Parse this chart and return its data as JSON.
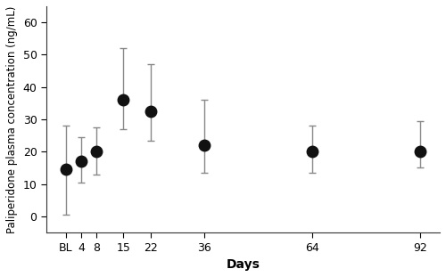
{
  "x_labels": [
    "BL",
    "4",
    "8",
    "15",
    "22",
    "36",
    "64",
    "92"
  ],
  "x_positions": [
    0,
    4,
    8,
    15,
    22,
    36,
    64,
    92
  ],
  "medians": [
    14.5,
    17.0,
    20.0,
    36.0,
    32.5,
    22.0,
    20.0,
    20.0
  ],
  "lower": [
    0.5,
    10.5,
    13.0,
    27.0,
    23.5,
    13.5,
    13.5,
    15.0
  ],
  "upper": [
    28.0,
    24.5,
    27.5,
    52.0,
    47.0,
    36.0,
    28.0,
    29.5
  ],
  "ylabel": "Paliperidone plasma concentration (ng/mL)",
  "xlabel": "Days",
  "ylim": [
    -5,
    65
  ],
  "yticks": [
    0,
    10,
    20,
    30,
    40,
    50,
    60
  ],
  "xlim": [
    -5,
    97
  ],
  "marker_color": "#111111",
  "errorbar_color": "#888888",
  "marker_size": 9,
  "background_color": "#ffffff",
  "spine_color": "#333333"
}
